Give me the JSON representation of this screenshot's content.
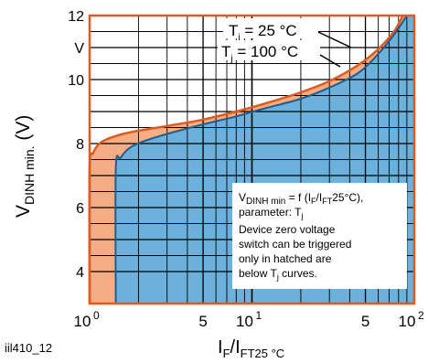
{
  "chart_data": {
    "type": "area",
    "x_scale": "log",
    "xlim": [
      1,
      100
    ],
    "ylim": [
      3,
      12
    ],
    "x_ticks": [
      {
        "value": 1,
        "base": "10",
        "exp": "0"
      },
      {
        "value": 5,
        "label": "5"
      },
      {
        "value": 10,
        "base": "10",
        "exp": "1"
      },
      {
        "value": 50,
        "label": "5"
      },
      {
        "value": 100,
        "base": "10",
        "exp": "2"
      }
    ],
    "y_ticks": [
      {
        "value": 12,
        "label": "12"
      },
      {
        "value": 11,
        "label": "V"
      },
      {
        "value": 10,
        "label": "10"
      },
      {
        "value": 8,
        "label": "8"
      },
      {
        "value": 6,
        "label": "6"
      },
      {
        "value": 4,
        "label": "4"
      }
    ],
    "ylabel": {
      "main": "V",
      "sub": "DINH min.",
      "tail": " (V)"
    },
    "xlabel": {
      "a": "I",
      "a_sub": "F",
      "b": "/I",
      "b_sub": "FT25 °C"
    },
    "fig_id": "iil410_12",
    "colors": {
      "t25_fill": "#f4ad84",
      "t100_fill": "#6cb0dc",
      "curve": "#e05a1e",
      "grid": "#000000"
    },
    "series": [
      {
        "name": "Tj = 25 °C",
        "label": {
          "t": "T",
          "sub": "j",
          "rest": " = 25 °C"
        },
        "points": [
          [
            1,
            3
          ],
          [
            1,
            7.2
          ],
          [
            1.05,
            7.7
          ],
          [
            1.15,
            8.0
          ],
          [
            1.3,
            8.15
          ],
          [
            1.6,
            8.3
          ],
          [
            2,
            8.4
          ],
          [
            3,
            8.55
          ],
          [
            5,
            8.75
          ],
          [
            8,
            9.0
          ],
          [
            12,
            9.25
          ],
          [
            20,
            9.6
          ],
          [
            30,
            9.95
          ],
          [
            45,
            10.45
          ],
          [
            60,
            10.95
          ],
          [
            75,
            11.5
          ],
          [
            85,
            12
          ]
        ]
      },
      {
        "name": "Tj = 100 °C",
        "label": {
          "t": "T",
          "sub": "j",
          "rest": " = 100 °C"
        },
        "points": [
          [
            1.45,
            3
          ],
          [
            1.45,
            7.2
          ],
          [
            1.55,
            7.55
          ],
          [
            1.75,
            7.85
          ],
          [
            2.1,
            8.05
          ],
          [
            3,
            8.3
          ],
          [
            5,
            8.6
          ],
          [
            8,
            8.85
          ],
          [
            12,
            9.1
          ],
          [
            20,
            9.4
          ],
          [
            30,
            9.75
          ],
          [
            45,
            10.2
          ],
          [
            60,
            10.8
          ],
          [
            75,
            11.4
          ],
          [
            90,
            12
          ]
        ]
      }
    ],
    "note": {
      "line1": {
        "a": "V",
        "a_sub": "DINH min",
        "b": " = f (I",
        "b_sub": "F",
        "c": "/I",
        "c_sub": "FT",
        "d": "25°C),"
      },
      "line2": {
        "a": "parameter: T",
        "a_sub": "j"
      },
      "line3": "Device zero voltage",
      "line4": "switch can be triggered",
      "line5": "only in hatched are",
      "line6": {
        "a": "below T",
        "a_sub": "j",
        "b": " curves."
      }
    }
  }
}
